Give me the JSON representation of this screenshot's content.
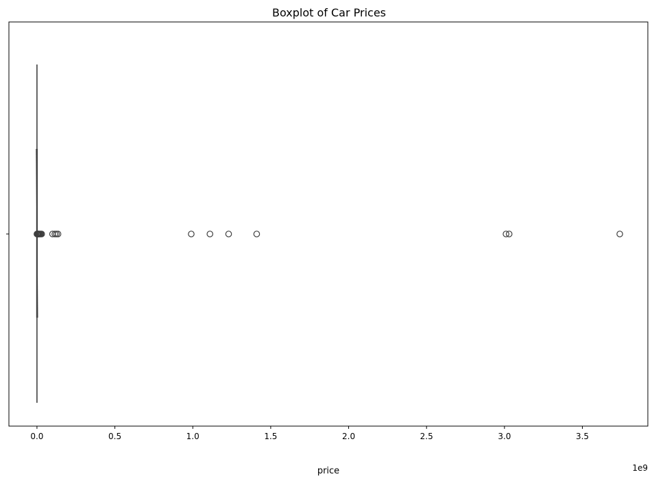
{
  "chart_data": {
    "type": "boxplot",
    "orientation": "horizontal",
    "title": "Boxplot of Car Prices",
    "xlabel": "price",
    "ylabel": "",
    "x_offset_label": "1e9",
    "xlim": [
      -0.18,
      3.92
    ],
    "x_ticks": [
      {
        "value": 0.0,
        "label": "0.0"
      },
      {
        "value": 0.5,
        "label": "0.5"
      },
      {
        "value": 1.0,
        "label": "1.0"
      },
      {
        "value": 1.5,
        "label": "1.5"
      },
      {
        "value": 2.0,
        "label": "2.0"
      },
      {
        "value": 2.5,
        "label": "2.5"
      },
      {
        "value": 3.0,
        "label": "3.0"
      },
      {
        "value": 3.5,
        "label": "3.5"
      }
    ],
    "grid": false,
    "box": {
      "q1": 0.0,
      "median": 0.0,
      "q3": 0.0,
      "whisker_low": 0.0,
      "whisker_high": 0.0
    },
    "outliers": [
      0.0,
      0.001,
      0.002,
      0.003,
      0.004,
      0.005,
      0.006,
      0.008,
      0.01,
      0.012,
      0.015,
      0.02,
      0.025,
      0.03,
      0.1,
      0.115,
      0.125,
      0.135,
      0.99,
      1.11,
      1.23,
      1.41,
      3.01,
      3.03,
      3.74
    ]
  }
}
